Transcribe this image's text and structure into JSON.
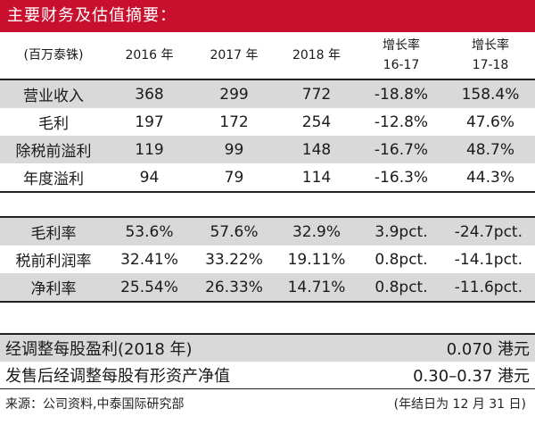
{
  "title": "主要财务及估值摘要：",
  "table1": {
    "header": {
      "unit": "(百万泰铢)",
      "y2016": "2016 年",
      "y2017": "2017 年",
      "y2018": "2018 年",
      "g1_line1": "增长率",
      "g1_line2": "16-17",
      "g2_line1": "增长率",
      "g2_line2": "17-18"
    },
    "rows": [
      {
        "label": "营业收入",
        "v2016": "368",
        "v2017": "299",
        "v2018": "772",
        "g1": "-18.8%",
        "g2": "158.4%"
      },
      {
        "label": "毛利",
        "v2016": "197",
        "v2017": "172",
        "v2018": "254",
        "g1": "-12.8%",
        "g2": "47.6%"
      },
      {
        "label": "除税前溢利",
        "v2016": "119",
        "v2017": "99",
        "v2018": "148",
        "g1": "-16.7%",
        "g2": "48.7%"
      },
      {
        "label": "年度溢利",
        "v2016": "94",
        "v2017": "79",
        "v2018": "114",
        "g1": "-16.3%",
        "g2": "44.3%"
      }
    ]
  },
  "table2": {
    "rows": [
      {
        "label": "毛利率",
        "v2016": "53.6%",
        "v2017": "57.6%",
        "v2018": "32.9%",
        "g1": "3.9pct.",
        "g2": "-24.7pct."
      },
      {
        "label": "税前利润率",
        "v2016": "32.41%",
        "v2017": "33.22%",
        "v2018": "19.11%",
        "g1": "0.8pct.",
        "g2": "-14.1pct."
      },
      {
        "label": "净利率",
        "v2016": "25.54%",
        "v2017": "26.33%",
        "v2018": "14.71%",
        "g1": "0.8pct.",
        "g2": "-11.6pct."
      }
    ]
  },
  "eps": {
    "label": "经调整每股盈利(2018 年)",
    "value": "0.070 港元"
  },
  "nav": {
    "label": "发售后经调整每股有形资产净值",
    "value": "0.30–0.37 港元"
  },
  "footer": {
    "source": "来源：公司资料,中泰国际研究部",
    "note": "(年结日为 12 月 31 日)"
  },
  "colors": {
    "title_bg": "#c8102e",
    "shade": "#d9d9d9"
  }
}
